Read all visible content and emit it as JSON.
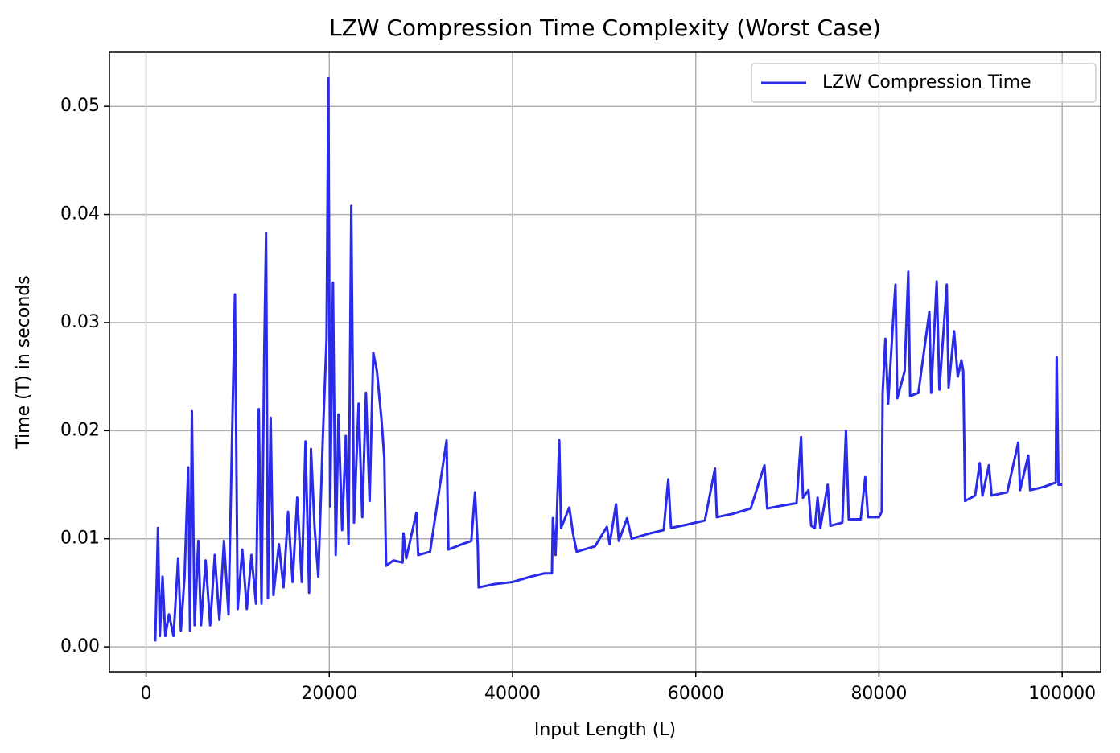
{
  "chart_data": {
    "type": "line",
    "title": "LZW Compression Time Complexity (Worst Case)",
    "x_label": "Input Length (L)",
    "y_label": "Time (T) in seconds",
    "x": [
      1000,
      1300,
      1500,
      1800,
      2100,
      2500,
      3000,
      3500,
      3800,
      4200,
      4600,
      4800,
      5000,
      5300,
      5700,
      6000,
      6500,
      7000,
      7500,
      8000,
      8500,
      9000,
      9700,
      10000,
      10500,
      11000,
      11500,
      12000,
      12300,
      12600,
      12900,
      13100,
      13300,
      13600,
      13900,
      14500,
      15000,
      15500,
      16000,
      16500,
      17000,
      17400,
      17800,
      18000,
      18400,
      18800,
      19300,
      19700,
      19900,
      20100,
      20400,
      20700,
      21000,
      21400,
      21800,
      22100,
      22400,
      22700,
      23200,
      23600,
      24000,
      24400,
      24800,
      25200,
      25700,
      26000,
      26200,
      27000,
      28000,
      28100,
      28400,
      29500,
      29700,
      31000,
      32800,
      33000,
      34500,
      35500,
      35900,
      36200,
      36300,
      38000,
      40000,
      42000,
      43500,
      44300,
      44400,
      44700,
      45100,
      45300,
      46200,
      46600,
      47000,
      49000,
      50300,
      50600,
      51300,
      51600,
      52500,
      53000,
      55000,
      56500,
      57000,
      57300,
      59000,
      61000,
      62100,
      62300,
      64000,
      66000,
      67500,
      67800,
      69000,
      71000,
      71500,
      71700,
      72300,
      72600,
      73000,
      73300,
      73600,
      74400,
      74700,
      76000,
      76400,
      76700,
      78000,
      78500,
      78800,
      80000,
      80300,
      80400,
      80700,
      81000,
      81600,
      81800,
      82000,
      82800,
      83200,
      83400,
      84300,
      85500,
      85700,
      86300,
      86600,
      87400,
      87600,
      88200,
      88600,
      89000,
      89200,
      89400,
      90500,
      91000,
      91300,
      92000,
      92300,
      94000,
      95200,
      95400,
      96300,
      96500,
      98000,
      99300,
      99400,
      99600,
      100000
    ],
    "series": [
      {
        "name": "LZW Compression Time",
        "color": "#2a2aea",
        "values": [
          0.0005,
          0.011,
          0.001,
          0.0065,
          0.001,
          0.003,
          0.001,
          0.0082,
          0.0015,
          0.0065,
          0.0166,
          0.0015,
          0.0218,
          0.002,
          0.0098,
          0.002,
          0.008,
          0.002,
          0.0085,
          0.0025,
          0.0098,
          0.003,
          0.0326,
          0.0035,
          0.009,
          0.0035,
          0.0085,
          0.004,
          0.022,
          0.004,
          0.0274,
          0.0383,
          0.0045,
          0.0212,
          0.0048,
          0.0095,
          0.0055,
          0.0125,
          0.006,
          0.0138,
          0.006,
          0.019,
          0.005,
          0.0183,
          0.011,
          0.0065,
          0.0195,
          0.0285,
          0.0526,
          0.013,
          0.0337,
          0.0085,
          0.0215,
          0.0108,
          0.0195,
          0.0095,
          0.0408,
          0.0115,
          0.0225,
          0.012,
          0.0235,
          0.0135,
          0.0272,
          0.0255,
          0.021,
          0.0175,
          0.0075,
          0.008,
          0.0078,
          0.0105,
          0.0082,
          0.0124,
          0.0085,
          0.0088,
          0.0191,
          0.009,
          0.0095,
          0.0098,
          0.0143,
          0.0095,
          0.0055,
          0.0058,
          0.006,
          0.0065,
          0.0068,
          0.0068,
          0.0119,
          0.0085,
          0.0191,
          0.011,
          0.0129,
          0.0105,
          0.0088,
          0.0093,
          0.0111,
          0.0095,
          0.0132,
          0.0098,
          0.0119,
          0.01,
          0.0105,
          0.0108,
          0.0155,
          0.011,
          0.0113,
          0.0117,
          0.0165,
          0.012,
          0.0123,
          0.0128,
          0.0168,
          0.0128,
          0.013,
          0.0133,
          0.0194,
          0.0138,
          0.0145,
          0.0112,
          0.011,
          0.0138,
          0.011,
          0.015,
          0.0112,
          0.0115,
          0.02,
          0.0118,
          0.0118,
          0.0157,
          0.012,
          0.012,
          0.0125,
          0.0235,
          0.0285,
          0.0225,
          0.031,
          0.0335,
          0.023,
          0.0255,
          0.0347,
          0.0232,
          0.0235,
          0.031,
          0.0235,
          0.0338,
          0.0238,
          0.0335,
          0.024,
          0.0292,
          0.025,
          0.0265,
          0.0255,
          0.0135,
          0.014,
          0.017,
          0.014,
          0.0168,
          0.014,
          0.0143,
          0.0189,
          0.0145,
          0.0177,
          0.0145,
          0.0148,
          0.0152,
          0.0268,
          0.015,
          0.015
        ]
      }
    ],
    "xlim": [
      -4000,
      104200
    ],
    "ylim": [
      -0.0023,
      0.055
    ],
    "xticks": [
      0,
      20000,
      40000,
      60000,
      80000,
      100000
    ],
    "yticks": [
      {
        "value": 0,
        "label": "0.00"
      },
      0.01,
      0.02,
      0.03,
      0.04,
      0.05
    ],
    "grid": true,
    "legend": "upper right"
  }
}
